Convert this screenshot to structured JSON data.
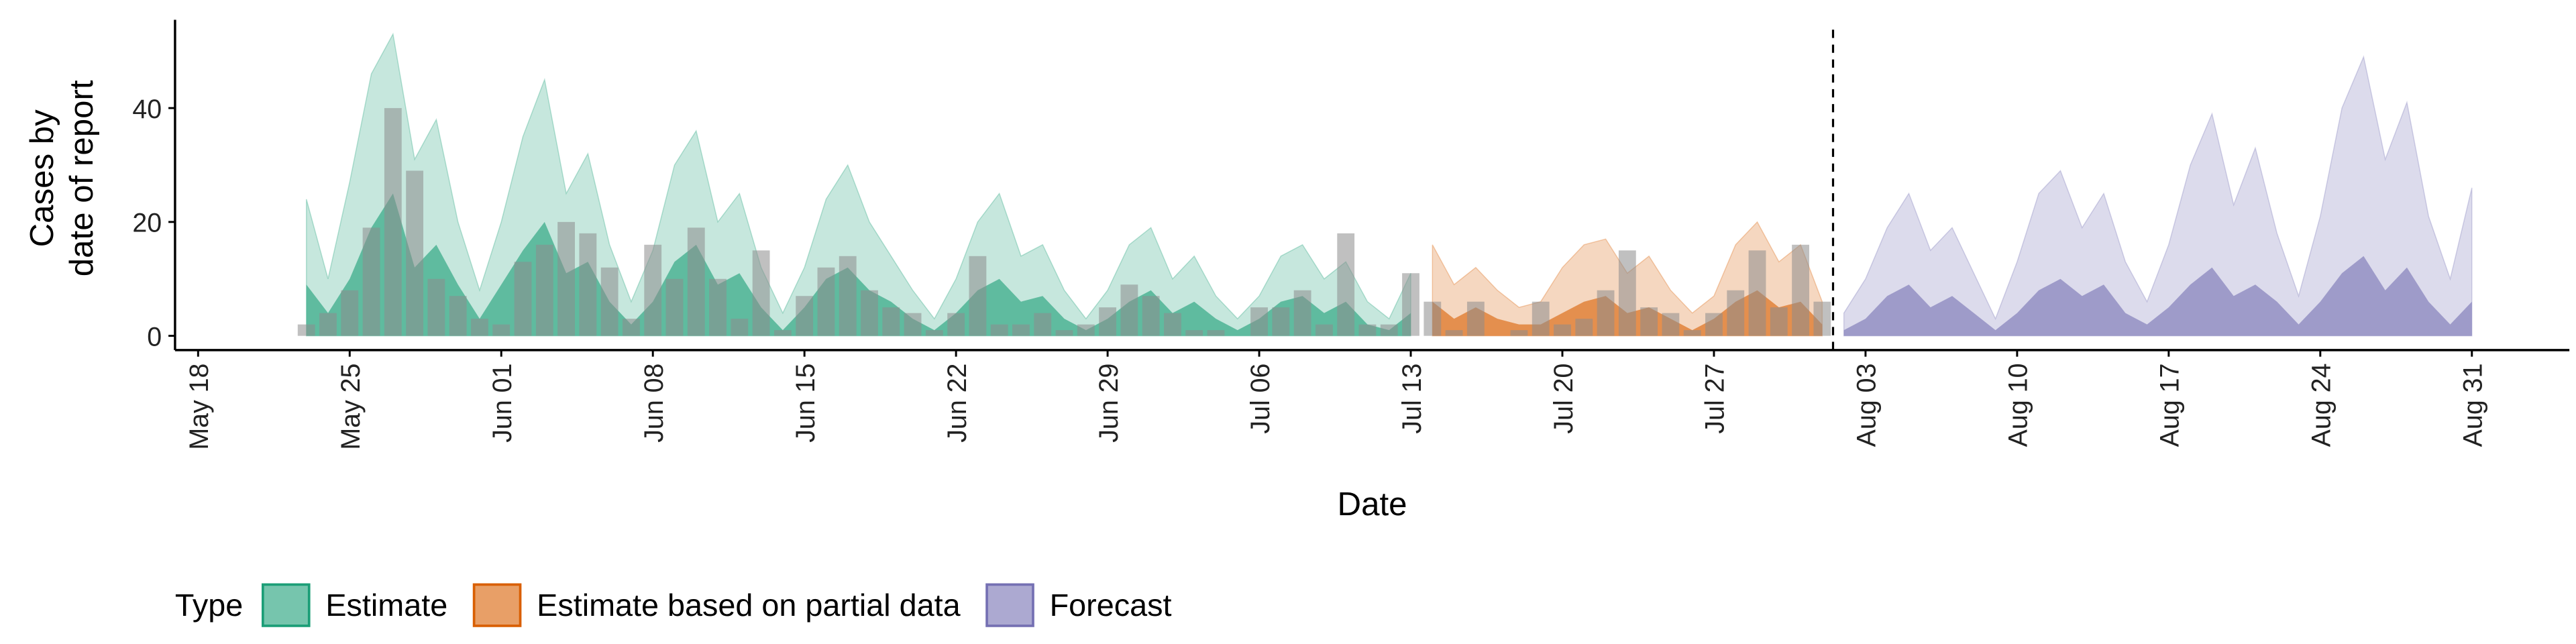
{
  "chart_data": {
    "type": "ribbon",
    "x_label": "Date",
    "y_label": [
      "Cases by",
      "date of report"
    ],
    "legend_title": "Type",
    "legend_position": "bottom",
    "categories": [
      null,
      "May 18",
      null,
      null,
      null,
      null,
      null,
      null,
      "May 25",
      null,
      null,
      null,
      null,
      null,
      null,
      "Jun 01",
      null,
      null,
      null,
      null,
      null,
      null,
      "Jun 08",
      null,
      null,
      null,
      null,
      null,
      null,
      "Jun 15",
      null,
      null,
      null,
      null,
      null,
      null,
      "Jun 22",
      null,
      null,
      null,
      null,
      null,
      null,
      "Jun 29",
      null,
      null,
      null,
      null,
      null,
      null,
      "Jul 06",
      null,
      null,
      null,
      null,
      null,
      null,
      "Jul 13",
      null,
      null,
      null,
      null,
      null,
      null,
      "Jul 20",
      null,
      null,
      null,
      null,
      null,
      null,
      "Jul 27",
      null,
      null,
      null,
      null,
      null,
      null,
      "Aug 03",
      null,
      null,
      null,
      null,
      null,
      null,
      "Aug 10",
      null,
      null,
      null,
      null,
      null,
      null,
      "Aug 17",
      null,
      null,
      null,
      null,
      null,
      null,
      "Aug 24",
      null,
      null,
      null,
      null,
      null,
      null,
      "Aug 31",
      null,
      null,
      null,
      null
    ],
    "ylim": [
      -2.5,
      55.5
    ],
    "yticks": [
      0,
      20,
      40
    ],
    "bars": {
      "color": "#8c8c8c",
      "values": [
        null,
        null,
        null,
        null,
        null,
        null,
        2,
        4,
        8,
        19,
        40,
        29,
        10,
        7,
        3,
        2,
        13,
        16,
        20,
        18,
        12,
        3,
        16,
        10,
        19,
        10,
        3,
        15,
        1,
        7,
        12,
        14,
        8,
        5,
        4,
        1,
        4,
        14,
        2,
        2,
        4,
        1,
        2,
        5,
        9,
        7,
        4,
        1,
        1,
        0,
        5,
        5,
        8,
        2,
        18,
        2,
        2,
        11,
        6,
        1,
        6,
        0,
        1,
        6,
        2,
        3,
        8,
        15,
        5,
        4,
        1,
        4,
        8,
        15,
        5,
        16,
        6,
        null,
        null,
        null,
        null,
        null,
        null,
        null,
        null,
        null,
        null,
        null,
        null,
        null,
        null,
        null,
        null,
        null,
        null,
        null,
        null,
        null,
        null,
        null,
        null,
        null,
        null,
        null,
        null,
        null,
        null,
        null,
        null,
        null,
        null
      ]
    },
    "series": [
      {
        "name": "Estimate",
        "color": "#1b9e77",
        "values": [
          null,
          null,
          null,
          null,
          null,
          null,
          24,
          10,
          27,
          46,
          53,
          31,
          38,
          20,
          8,
          20,
          35,
          45,
          25,
          32,
          16,
          6,
          15,
          30,
          36,
          20,
          25,
          12,
          4,
          12,
          24,
          30,
          20,
          14,
          8,
          3,
          10,
          20,
          25,
          14,
          16,
          8,
          3,
          8,
          16,
          19,
          10,
          14,
          7,
          3,
          7,
          14,
          16,
          10,
          13,
          6,
          3,
          11,
          null,
          null,
          null,
          null,
          null,
          null,
          null,
          null,
          null,
          null,
          null,
          null,
          null,
          null,
          null,
          null,
          null,
          null,
          null,
          null,
          null,
          null,
          null,
          null,
          null,
          null,
          null,
          null,
          null,
          null,
          null,
          null,
          null,
          null,
          null,
          null,
          null,
          null,
          null,
          null,
          null,
          null,
          null,
          null,
          null,
          null,
          null,
          null,
          null,
          null,
          null,
          null,
          null
        ],
        "inner": [
          null,
          null,
          null,
          null,
          null,
          null,
          9,
          4,
          10,
          19,
          25,
          12,
          16,
          9,
          3,
          9,
          15,
          20,
          11,
          13,
          6,
          2,
          6,
          13,
          16,
          9,
          11,
          5,
          1,
          5,
          10,
          12,
          8,
          6,
          3,
          1,
          4,
          8,
          10,
          6,
          7,
          3,
          1,
          3,
          6,
          8,
          4,
          6,
          3,
          1,
          3,
          6,
          7,
          4,
          6,
          2,
          1,
          4,
          null,
          null,
          null,
          null,
          null,
          null,
          null,
          null,
          null,
          null,
          null,
          null,
          null,
          null,
          null,
          null,
          null,
          null,
          null,
          null,
          null,
          null,
          null,
          null,
          null,
          null,
          null,
          null,
          null,
          null,
          null,
          null,
          null,
          null,
          null,
          null,
          null,
          null,
          null,
          null,
          null,
          null,
          null,
          null,
          null,
          null,
          null,
          null,
          null,
          null,
          null,
          null,
          null
        ]
      },
      {
        "name": "Estimate based on partial data",
        "color": "#d95f02",
        "values": [
          null,
          null,
          null,
          null,
          null,
          null,
          null,
          null,
          null,
          null,
          null,
          null,
          null,
          null,
          null,
          null,
          null,
          null,
          null,
          null,
          null,
          null,
          null,
          null,
          null,
          null,
          null,
          null,
          null,
          null,
          null,
          null,
          null,
          null,
          null,
          null,
          null,
          null,
          null,
          null,
          null,
          null,
          null,
          null,
          null,
          null,
          null,
          null,
          null,
          null,
          null,
          null,
          null,
          null,
          null,
          null,
          null,
          null,
          16,
          9,
          12,
          8,
          5,
          6,
          12,
          16,
          17,
          11,
          14,
          8,
          4,
          7,
          16,
          20,
          13,
          16,
          6,
          null,
          null,
          null,
          null,
          null,
          null,
          null,
          null,
          null,
          null,
          null,
          null,
          null,
          null,
          null,
          null,
          null,
          null,
          null,
          null,
          null,
          null,
          null,
          null,
          null,
          null,
          null,
          null,
          null,
          null,
          null,
          null,
          null,
          null
        ],
        "inner": [
          null,
          null,
          null,
          null,
          null,
          null,
          null,
          null,
          null,
          null,
          null,
          null,
          null,
          null,
          null,
          null,
          null,
          null,
          null,
          null,
          null,
          null,
          null,
          null,
          null,
          null,
          null,
          null,
          null,
          null,
          null,
          null,
          null,
          null,
          null,
          null,
          null,
          null,
          null,
          null,
          null,
          null,
          null,
          null,
          null,
          null,
          null,
          null,
          null,
          null,
          null,
          null,
          null,
          null,
          null,
          null,
          null,
          null,
          6,
          3,
          5,
          3,
          2,
          2,
          4,
          6,
          7,
          4,
          5,
          3,
          1,
          3,
          6,
          8,
          5,
          6,
          2,
          null,
          null,
          null,
          null,
          null,
          null,
          null,
          null,
          null,
          null,
          null,
          null,
          null,
          null,
          null,
          null,
          null,
          null,
          null,
          null,
          null,
          null,
          null,
          null,
          null,
          null,
          null,
          null,
          null,
          null,
          null,
          null,
          null,
          null
        ]
      },
      {
        "name": "Forecast",
        "color": "#7570b3",
        "values": [
          null,
          null,
          null,
          null,
          null,
          null,
          null,
          null,
          null,
          null,
          null,
          null,
          null,
          null,
          null,
          null,
          null,
          null,
          null,
          null,
          null,
          null,
          null,
          null,
          null,
          null,
          null,
          null,
          null,
          null,
          null,
          null,
          null,
          null,
          null,
          null,
          null,
          null,
          null,
          null,
          null,
          null,
          null,
          null,
          null,
          null,
          null,
          null,
          null,
          null,
          null,
          null,
          null,
          null,
          null,
          null,
          null,
          null,
          null,
          null,
          null,
          null,
          null,
          null,
          null,
          null,
          null,
          null,
          null,
          null,
          null,
          null,
          null,
          null,
          null,
          null,
          null,
          4,
          10,
          19,
          25,
          15,
          19,
          11,
          3,
          13,
          25,
          29,
          19,
          25,
          13,
          6,
          16,
          30,
          39,
          23,
          33,
          18,
          7,
          21,
          40,
          49,
          31,
          41,
          21,
          10,
          26,
          null,
          null,
          null,
          null
        ],
        "inner": [
          null,
          null,
          null,
          null,
          null,
          null,
          null,
          null,
          null,
          null,
          null,
          null,
          null,
          null,
          null,
          null,
          null,
          null,
          null,
          null,
          null,
          null,
          null,
          null,
          null,
          null,
          null,
          null,
          null,
          null,
          null,
          null,
          null,
          null,
          null,
          null,
          null,
          null,
          null,
          null,
          null,
          null,
          null,
          null,
          null,
          null,
          null,
          null,
          null,
          null,
          null,
          null,
          null,
          null,
          null,
          null,
          null,
          null,
          null,
          null,
          null,
          null,
          null,
          null,
          null,
          null,
          null,
          null,
          null,
          null,
          null,
          null,
          null,
          null,
          null,
          null,
          null,
          1,
          3,
          7,
          9,
          5,
          7,
          4,
          1,
          4,
          8,
          10,
          7,
          9,
          4,
          2,
          5,
          9,
          12,
          7,
          9,
          6,
          2,
          6,
          11,
          14,
          8,
          12,
          6,
          2,
          6,
          null,
          null,
          null,
          null
        ]
      }
    ]
  }
}
